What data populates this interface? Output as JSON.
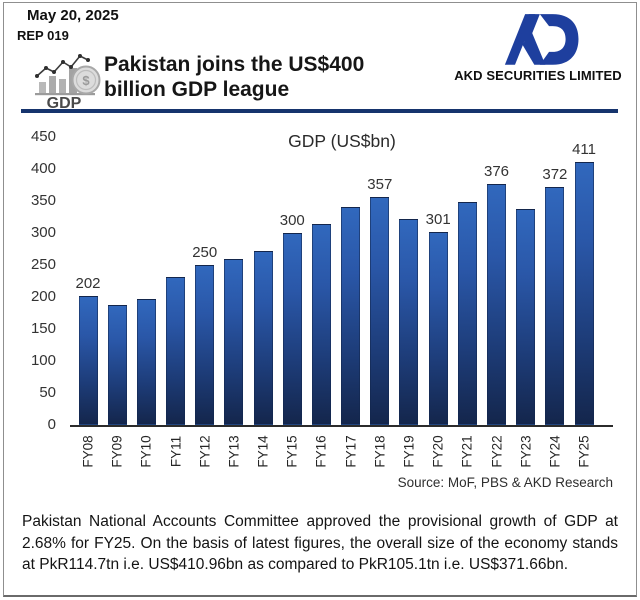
{
  "header": {
    "date": "May 20, 2025",
    "report_no": "REP 019",
    "title_line1": "Pakistan joins the US$400",
    "title_line2": "billion GDP league",
    "gdp_icon_label": "GDP",
    "company": "AKD SECURITIES LIMITED",
    "accent_color": "#16346d",
    "logo_color": "#1e3f9e"
  },
  "chart_data": {
    "type": "bar",
    "title": "GDP (US$bn)",
    "categories": [
      "FY08",
      "FY09",
      "FY10",
      "FY11",
      "FY12",
      "FY13",
      "FY14",
      "FY15",
      "FY16",
      "FY17",
      "FY18",
      "FY19",
      "FY20",
      "FY21",
      "FY22",
      "FY23",
      "FY24",
      "FY25"
    ],
    "values": [
      202,
      187,
      197,
      231,
      250,
      260,
      272,
      300,
      314,
      340,
      357,
      322,
      301,
      349,
      376,
      338,
      372,
      411
    ],
    "data_labels": [
      202,
      null,
      null,
      null,
      250,
      null,
      null,
      300,
      null,
      null,
      357,
      null,
      301,
      null,
      376,
      null,
      372,
      411
    ],
    "yticks": [
      450,
      400,
      350,
      300,
      250,
      200,
      150,
      100,
      50,
      0
    ],
    "ylim": [
      0,
      450
    ],
    "grid": false,
    "legend": false,
    "bar_color_top": "#3168bd",
    "bar_color_bottom": "#14264c",
    "source": "Source: MoF, PBS & AKD Research"
  },
  "footer": {
    "paragraph": "Pakistan National Accounts Committee approved the provisional growth of GDP at 2.68% for FY25. On the basis of latest figures, the overall size of the economy stands at PkR114.7tn i.e. US$410.96bn as compared to PkR105.1tn i.e. US$371.66bn."
  }
}
